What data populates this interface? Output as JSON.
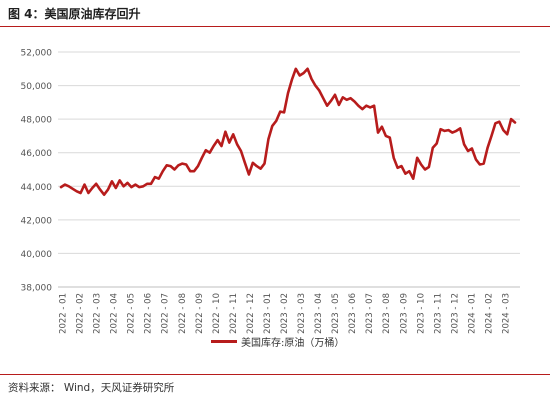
{
  "figure": {
    "title": "图 4：美国原油库存回升",
    "source": "资料来源： Wind，天风证券研究所"
  },
  "chart_data": {
    "type": "line",
    "title": "",
    "xlabel": "",
    "ylabel": "",
    "ylim": [
      38000,
      52000
    ],
    "yticks": [
      38000,
      40000,
      42000,
      44000,
      46000,
      48000,
      50000,
      52000
    ],
    "ytick_labels": [
      "38,000",
      "40,000",
      "42,000",
      "44,000",
      "46,000",
      "48,000",
      "50,000",
      "52,000"
    ],
    "x_tick_labels": [
      "2022 - 01",
      "2022 - 02",
      "2022 - 03",
      "2022 - 04",
      "2022 - 05",
      "2022 - 06",
      "2022 - 07",
      "2022 - 08",
      "2022 - 09",
      "2022 - 10",
      "2022 - 11",
      "2022 - 12",
      "2023 - 01",
      "2023 - 02",
      "2023 - 03",
      "2023 - 04",
      "2023 - 05",
      "2023 - 06",
      "2023 - 07",
      "2023 - 08",
      "2023 - 09",
      "2023 - 10",
      "2023 - 11",
      "2023 - 12",
      "2024 - 01",
      "2024 - 02",
      "2024 - 03"
    ],
    "grid": true,
    "legend_position": "bottom-center",
    "series_color": "#b71c1c",
    "series": [
      {
        "name": "美国库存:原油（万桶）",
        "values": [
          43950,
          44100,
          44000,
          43850,
          43700,
          43600,
          44100,
          43600,
          43900,
          44150,
          43800,
          43500,
          43800,
          44300,
          43900,
          44350,
          44000,
          44200,
          43950,
          44100,
          43950,
          44000,
          44150,
          44150,
          44550,
          44450,
          44900,
          45250,
          45200,
          45000,
          45250,
          45350,
          45300,
          44900,
          44900,
          45200,
          45700,
          46150,
          46000,
          46400,
          46750,
          46400,
          47250,
          46600,
          47100,
          46500,
          46100,
          45400,
          44700,
          45400,
          45200,
          45050,
          45350,
          46800,
          47600,
          47900,
          48450,
          48400,
          49550,
          50350,
          51000,
          50600,
          50750,
          51000,
          50400,
          50000,
          49700,
          49250,
          48800,
          49100,
          49450,
          48850,
          49300,
          49150,
          49250,
          49050,
          48800,
          48600,
          48800,
          48700,
          48800,
          47200,
          47550,
          47000,
          46900,
          45700,
          45100,
          45200,
          44750,
          44900,
          44450,
          45700,
          45300,
          45000,
          45150,
          46300,
          46550,
          47400,
          47300,
          47350,
          47200,
          47300,
          47450,
          46500,
          46100,
          46250,
          45600,
          45300,
          45350,
          46300,
          47000,
          47750,
          47850,
          47350,
          47100,
          48000,
          47800
        ]
      }
    ]
  }
}
